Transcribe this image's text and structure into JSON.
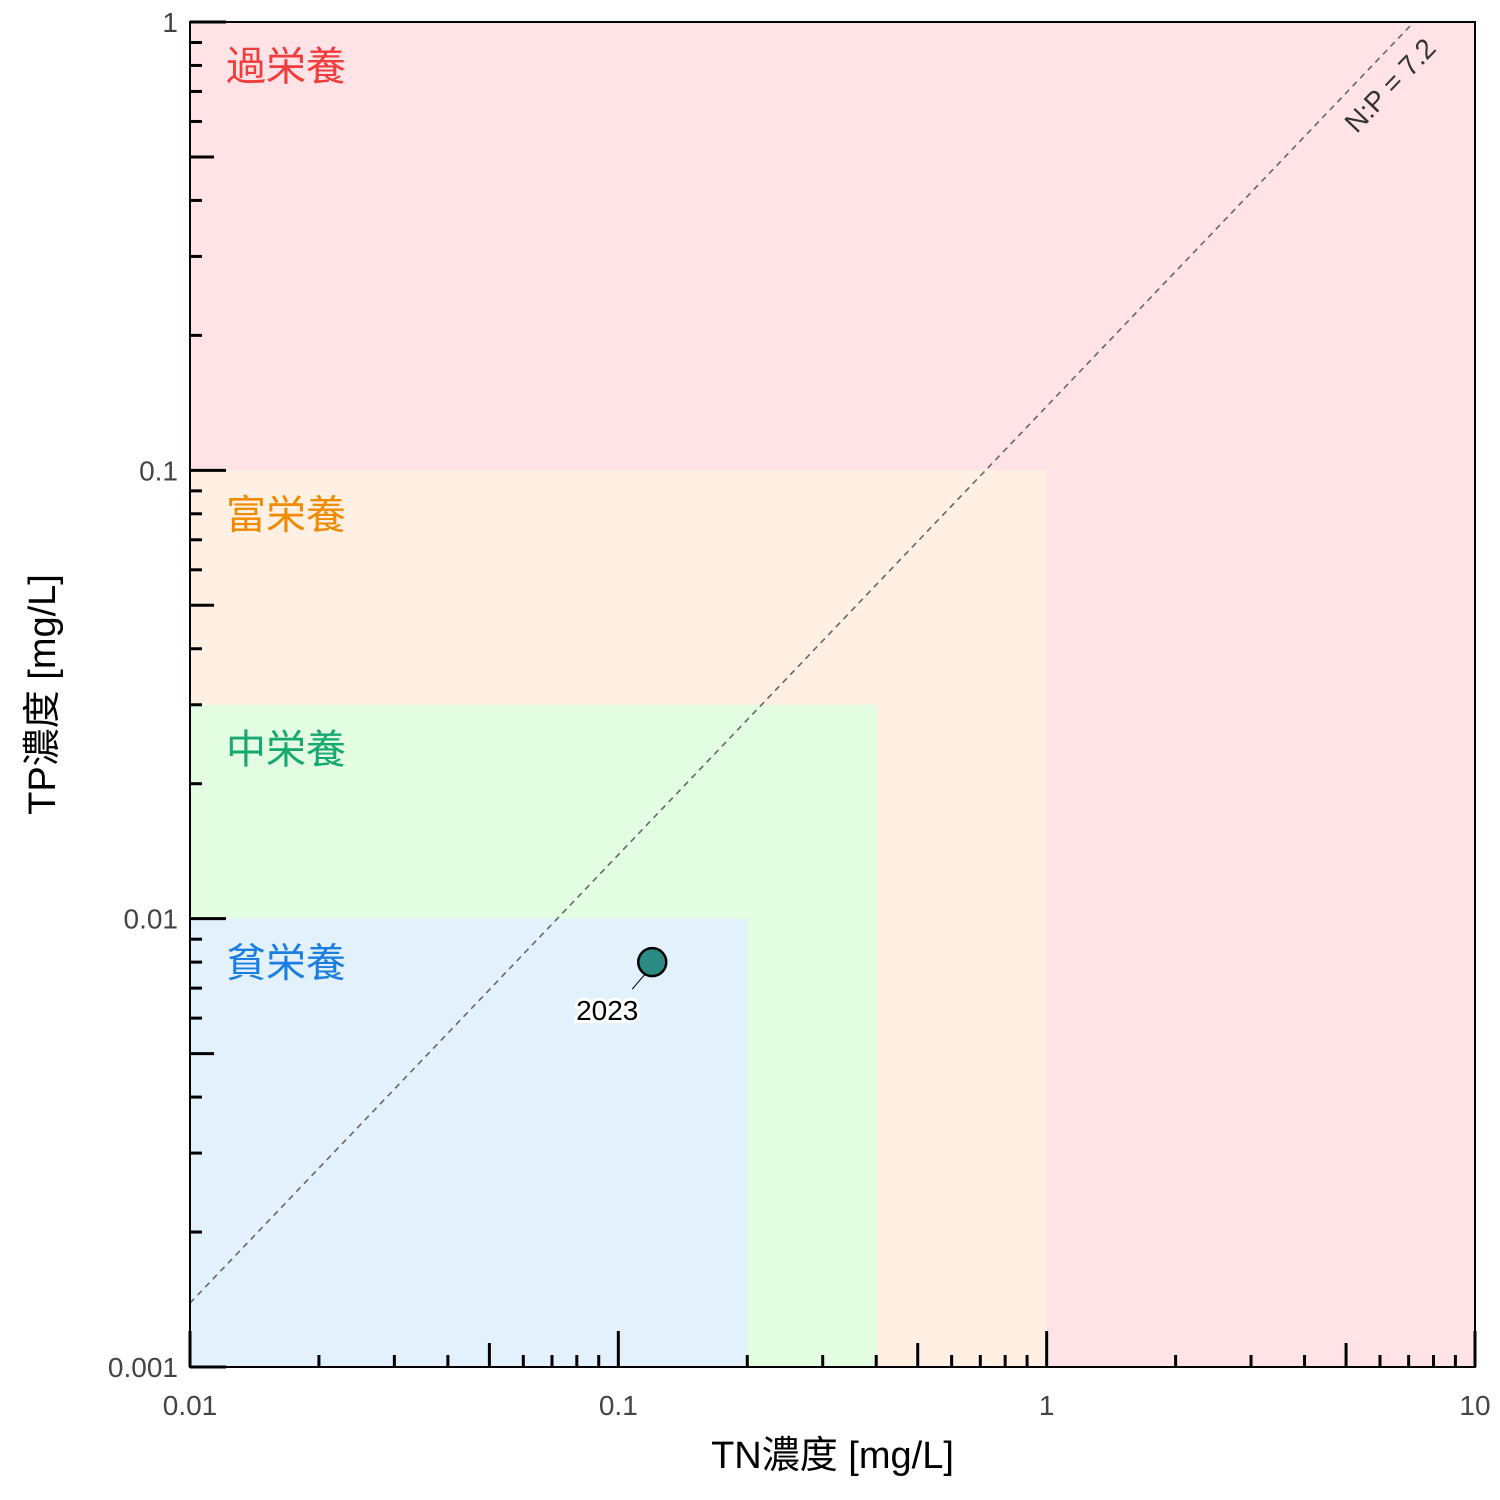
{
  "chart_data": {
    "type": "scatter",
    "xlabel": "TN濃度 [mg/L]",
    "ylabel": "TP濃度 [mg/L]",
    "x_scale": "log",
    "y_scale": "log",
    "xlim": [
      0.01,
      10
    ],
    "ylim": [
      0.001,
      1
    ],
    "x_tick_labels": [
      {
        "value": 0.01,
        "label": "0.01"
      },
      {
        "value": 0.1,
        "label": "0.1"
      },
      {
        "value": 1,
        "label": "1"
      },
      {
        "value": 10,
        "label": "10"
      }
    ],
    "y_tick_labels": [
      {
        "value": 0.001,
        "label": "0.001"
      },
      {
        "value": 0.01,
        "label": "0.01"
      },
      {
        "value": 0.1,
        "label": "0.1"
      },
      {
        "value": 1,
        "label": "1"
      }
    ],
    "zones": [
      {
        "name": "過栄養",
        "tn_max": 10,
        "tp_max": 1,
        "fill": "#ffe3e6",
        "label_color": "#f03c3c"
      },
      {
        "name": "富栄養",
        "tn_max": 1,
        "tp_max": 0.1,
        "fill": "#fff0e3",
        "label_color": "#f08a00"
      },
      {
        "name": "中栄養",
        "tn_max": 0.4,
        "tp_max": 0.03,
        "fill": "#e3fde3",
        "label_color": "#15a870"
      },
      {
        "name": "貧栄養",
        "tn_max": 0.2,
        "tp_max": 0.01,
        "fill": "#e3f1fd",
        "label_color": "#1a7fe0"
      }
    ],
    "reference_line": {
      "label": "N:P = 7.2",
      "ratio": 7.2,
      "color": "#666666",
      "style": "dashed"
    },
    "points": [
      {
        "label": "2023",
        "x": 0.12,
        "y": 0.008,
        "fill": "#2a8c84"
      }
    ],
    "grid": false
  }
}
